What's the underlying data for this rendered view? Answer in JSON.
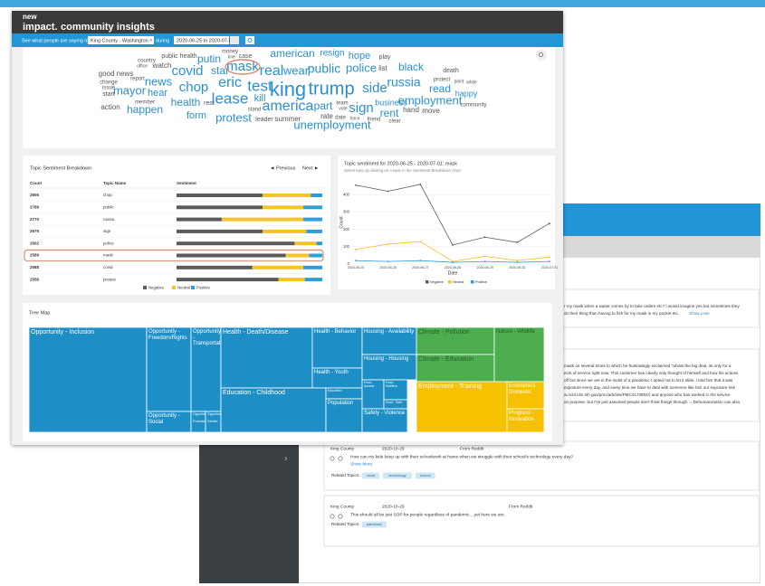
{
  "header": {
    "logo_small": "new",
    "logo": "impact.",
    "title": "community insights"
  },
  "search": {
    "prefix": "See what people are saying in",
    "location": "King County - Washington",
    "during": "during",
    "dates": "2020-06-25 to 2020-07-01"
  },
  "word_cloud": {
    "words": [
      "money",
      "american",
      "resign",
      "hope",
      "play",
      "public health",
      "putin",
      "line",
      "case",
      "mask",
      "real",
      "wear",
      "public",
      "police",
      "list",
      "black",
      "death",
      "country",
      "watch",
      "office",
      "covid",
      "star",
      "good news",
      "change",
      "report",
      "news",
      "eric",
      "test",
      "king",
      "trump",
      "side",
      "russia",
      "read",
      "protect",
      "point",
      "white",
      "issue",
      "mayor",
      "hear",
      "chop",
      "lease",
      "kill",
      "america",
      "part",
      "sign",
      "business",
      "employment",
      "happy",
      "start",
      "member",
      "health",
      "rest",
      "stand",
      "team",
      "vote",
      "rent",
      "hand",
      "move",
      "community",
      "action",
      "happen",
      "form",
      "protest",
      "leader",
      "summer",
      "rate",
      "date",
      "force",
      "friend",
      "clear",
      "unemployment"
    ]
  },
  "sentiment_breakdown": {
    "title": "Topic Sentiment Breakdown",
    "previous": "◄ Previous",
    "next": "Next ►",
    "columns": [
      "Count",
      "Topic Name",
      "Sentiment"
    ],
    "rows": [
      {
        "count": 2605,
        "topic": "chop",
        "negative": 59,
        "neutral": 33,
        "positive": 8
      },
      {
        "count": 2789,
        "topic": "public",
        "negative": 59,
        "neutral": 28,
        "positive": 13
      },
      {
        "count": 2770,
        "topic": "russia",
        "negative": 31,
        "neutral": 56,
        "positive": 13
      },
      {
        "count": 2675,
        "topic": "sign",
        "negative": 59,
        "neutral": 30,
        "positive": 11
      },
      {
        "count": 2602,
        "topic": "police",
        "negative": 81,
        "neutral": 15,
        "positive": 4
      },
      {
        "count": 2589,
        "topic": "mask",
        "negative": 75,
        "neutral": 16,
        "positive": 9
      },
      {
        "count": 2588,
        "topic": "covid",
        "negative": 52,
        "neutral": 35,
        "positive": 13
      },
      {
        "count": 2556,
        "topic": "protest",
        "negative": 70,
        "neutral": 18,
        "positive": 12
      }
    ],
    "legend": [
      {
        "name": "Negative",
        "color": "#5b5b5b"
      },
      {
        "name": "Neutral",
        "color": "#f4c22b"
      },
      {
        "name": "Positive",
        "color": "#2e9edb"
      }
    ]
  },
  "topic_chart": {
    "type": "line",
    "title": "Topic sentiment for 2020-06-25 - 2020-07-01: mask",
    "subtitle": "Select topic by clicking on a topic in the Sentiment Breakdown chart",
    "x": [
      "2020-06-25",
      "2020-06-26",
      "2020-06-27",
      "2020-06-28",
      "2020-06-29",
      "2020-06-30",
      "2020-07-01"
    ],
    "xlabel": "Date",
    "ylabel": "Count",
    "ylim": [
      0,
      480
    ],
    "yticks": [
      0,
      100,
      200,
      300,
      400
    ],
    "series": [
      {
        "name": "Negative",
        "color": "#5b5b5b",
        "values": [
          455,
          420,
          460,
          110,
          155,
          125,
          235
        ]
      },
      {
        "name": "Neutral",
        "color": "#f4c22b",
        "values": [
          85,
          115,
          130,
          15,
          45,
          20,
          40
        ]
      },
      {
        "name": "Positive",
        "color": "#2e9edb",
        "values": [
          20,
          15,
          20,
          10,
          15,
          10,
          15
        ]
      }
    ]
  },
  "treemap": {
    "title": "Tree Map",
    "cells": [
      "Opportunity - Inclusion",
      "Opportunity - Freedom/Rights",
      "Opportunity - Transportation",
      "Opportunity - Social",
      "Opportunity - Financial",
      "Opportunity - Gender",
      "Health - Death/Disease",
      "Health - Behavior",
      "Health - Youth",
      "Education - Childhood",
      "Education",
      "Population",
      "Housing - Availability",
      "Housing - Housing",
      "Food - Access",
      "Food - Nutrition",
      "Food - Safe",
      "Safety - Violence",
      "Climate - Pollution",
      "Climate - Education",
      "Nature - Wildlife",
      "Employment - Training",
      "Economics - Domestic",
      "Progress - Innovation"
    ]
  },
  "feed": {
    "snippet1": [
      "r my mask when a waiter comes by to take orders etc? I would imagine yes but sometimes they",
      "do their thing than having to fish for my mask in my pocket etc."
    ],
    "show_less": "Show Less",
    "snippet2": [
      "mask on several times to which he frustratingly exclaimed \"whats the big deal, its only for a",
      "ects of service right now. This customer has clearly only thought of himself and how his actions",
      "off but since we are in the midst of a pandemic I opted not to let it slide. I told him that it was",
      "exposure every day, and every time we have to deal with someone like him our exposure risk",
      "w.ncbi.nlm.nih.gov/pmc/articles/PMC4173804/) and anyone who has worked in the service",
      "on purpose, but I've just assumed people don't think things through. = Dehumanization can also"
    ],
    "cards": [
      {
        "location": "King County",
        "date": "2020-10-29",
        "source": "From Reddit",
        "text": "How can my kids keep up with their schoolwork at home when we struggle with their school's technology every day?",
        "more": "Show More",
        "related": "Related Topics:",
        "topics": [
          "covid",
          "technology",
          "school"
        ]
      },
      {
        "location": "King County",
        "date": "2020-10-29",
        "source": "From Reddit",
        "text": "This should all be just SOP for people regardless of pandemic....yet here we are.",
        "related": "Related Topics:",
        "topics": [
          "pandemic"
        ]
      }
    ]
  }
}
